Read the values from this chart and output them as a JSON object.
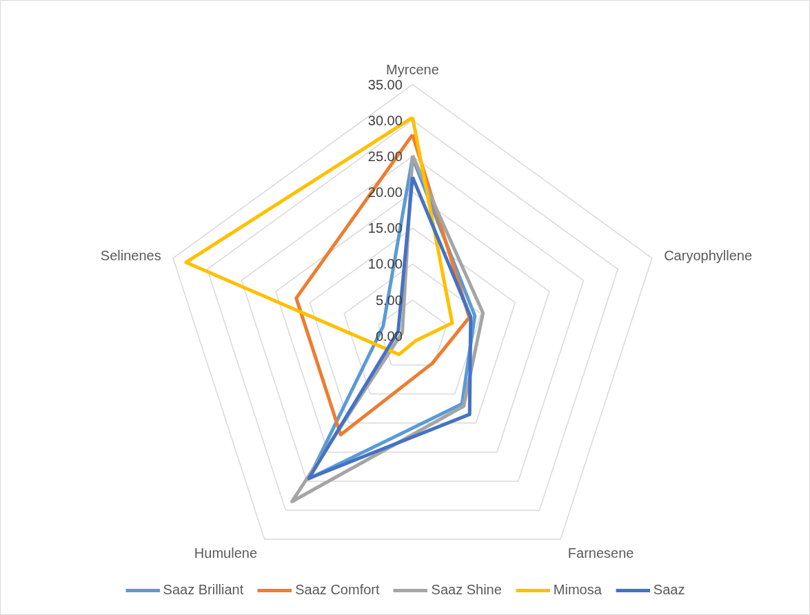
{
  "chart_data": {
    "type": "radar",
    "categories": [
      "Myrcene",
      "Caryophyllene",
      "Farnesene",
      "Humulene",
      "Selinenes"
    ],
    "ylim": [
      0,
      35
    ],
    "yticks": [
      {
        "value": 0,
        "label": "0.00"
      },
      {
        "value": 5,
        "label": "5.00"
      },
      {
        "value": 10,
        "label": "10.00"
      },
      {
        "value": 15,
        "label": "15.00"
      },
      {
        "value": 20,
        "label": "20.00"
      },
      {
        "value": 25,
        "label": "25.00"
      },
      {
        "value": 30,
        "label": "30.00"
      },
      {
        "value": 35,
        "label": "35.00"
      }
    ],
    "grid": true,
    "legend": "bottom",
    "series": [
      {
        "name": "Saaz Brilliant",
        "color": "#5b9bd5",
        "values": [
          24.8,
          9.1,
          11.7,
          24.6,
          4.3
        ]
      },
      {
        "name": "Saaz Comfort",
        "color": "#ed7d31",
        "values": [
          28.0,
          8.3,
          4.7,
          17.0,
          17.0
        ]
      },
      {
        "name": "Saaz Shine",
        "color": "#a5a5a5",
        "values": [
          25.1,
          10.3,
          12.1,
          28.5,
          1.5
        ]
      },
      {
        "name": "Mimosa",
        "color": "#ffc000",
        "values": [
          30.4,
          5.8,
          0.8,
          3.2,
          33.1
        ]
      },
      {
        "name": "Saaz",
        "color": "#4472c4",
        "values": [
          22.1,
          8.5,
          13.5,
          24.5,
          2.1
        ]
      }
    ]
  }
}
